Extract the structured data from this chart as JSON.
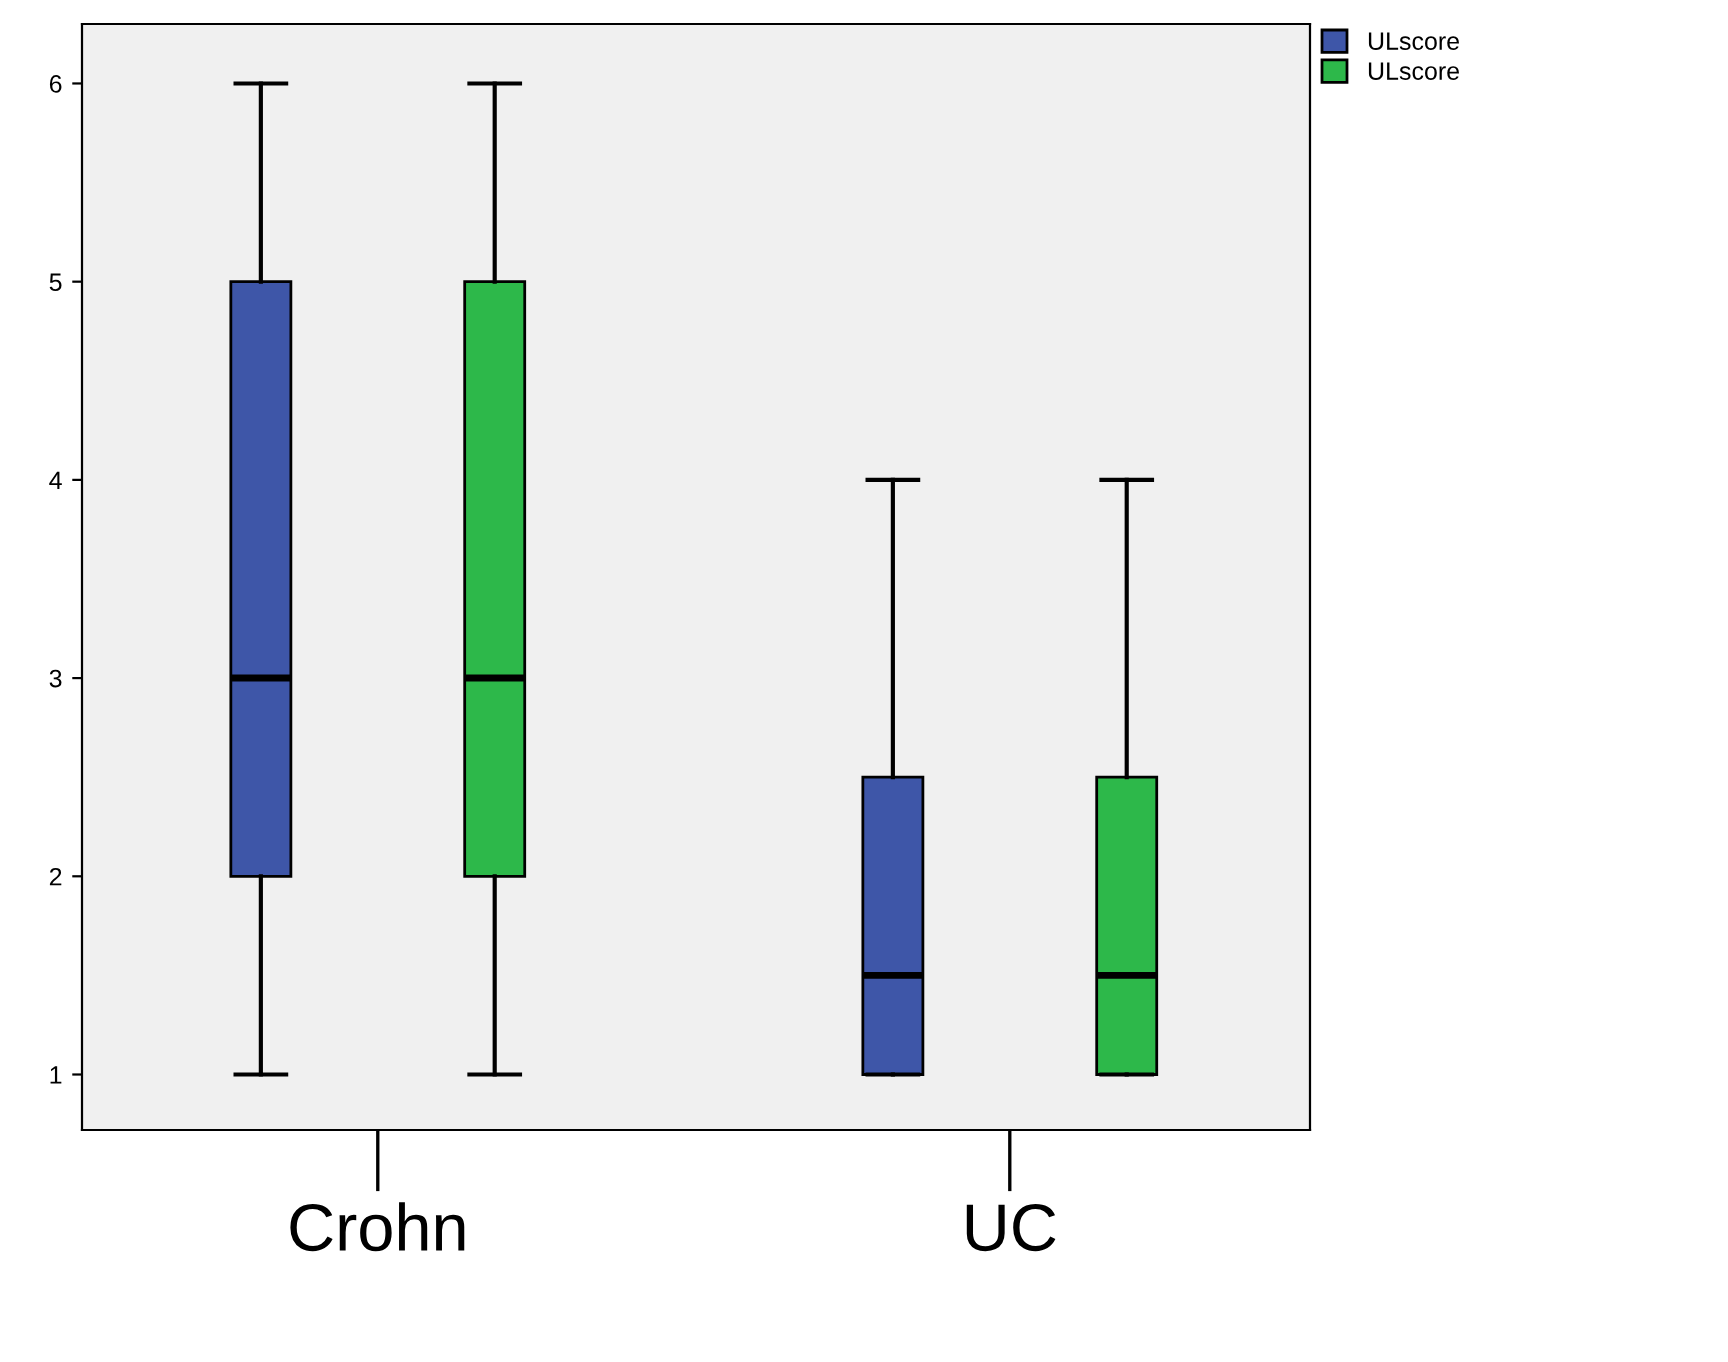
{
  "chart_data": {
    "type": "box",
    "categories": [
      "Crohn",
      "UC"
    ],
    "ylim": [
      0.72,
      6.3
    ],
    "yticks": [
      1,
      2,
      3,
      4,
      5,
      6
    ],
    "grid": false,
    "legend": "top right",
    "series": [
      {
        "name": "ULscore",
        "color": "#3e56a8",
        "boxes": [
          {
            "low": 1,
            "q1": 2,
            "median": 3,
            "q3": 5,
            "high": 6
          },
          {
            "low": 1,
            "q1": 1,
            "median": 1.5,
            "q3": 2.5,
            "high": 4
          }
        ]
      },
      {
        "name": "ULscore",
        "color": "#2db84a",
        "boxes": [
          {
            "low": 1,
            "q1": 2,
            "median": 3,
            "q3": 5,
            "high": 6
          },
          {
            "low": 1,
            "q1": 1,
            "median": 1.5,
            "q3": 2.5,
            "high": 4
          }
        ]
      }
    ]
  }
}
